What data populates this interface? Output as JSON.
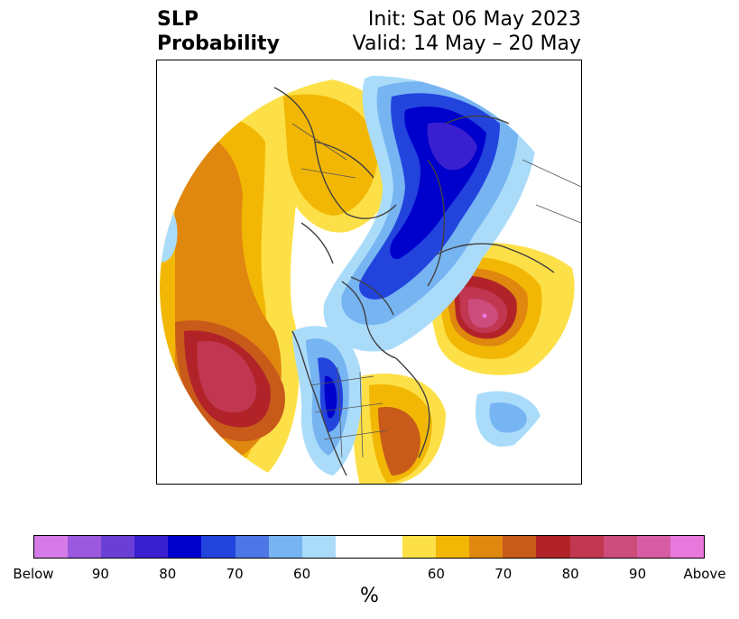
{
  "title": {
    "left_line1": "SLP",
    "left_line2": "Probability",
    "right_line1": "Init: Sat 06 May 2023",
    "right_line2": "Valid: 14 May – 20 May"
  },
  "map": {
    "projection": "north-polar-stereographic",
    "features": [
      "coastlines",
      "country-borders",
      "state-borders"
    ]
  },
  "colorbar": {
    "unit": "%",
    "colors": [
      "#d67ae8",
      "#9b59e0",
      "#6a3fd6",
      "#3a1fd0",
      "#0000cc",
      "#2244dd",
      "#4d77e6",
      "#77b4f2",
      "#aadcfa",
      "#ffffff",
      "#ffffff",
      "#fde047",
      "#f2b705",
      "#df870f",
      "#c85a1a",
      "#b12328",
      "#c13650",
      "#cc4c7c",
      "#d85ca4",
      "#e878dc"
    ],
    "ticks": [
      {
        "label": "Below",
        "index": 0
      },
      {
        "label": "90",
        "index": 2
      },
      {
        "label": "80",
        "index": 4
      },
      {
        "label": "70",
        "index": 6
      },
      {
        "label": "60",
        "index": 8
      },
      {
        "label": "60",
        "index": 12
      },
      {
        "label": "70",
        "index": 14
      },
      {
        "label": "80",
        "index": 16
      },
      {
        "label": "90",
        "index": 18
      },
      {
        "label": "Above",
        "index": 20
      }
    ]
  }
}
